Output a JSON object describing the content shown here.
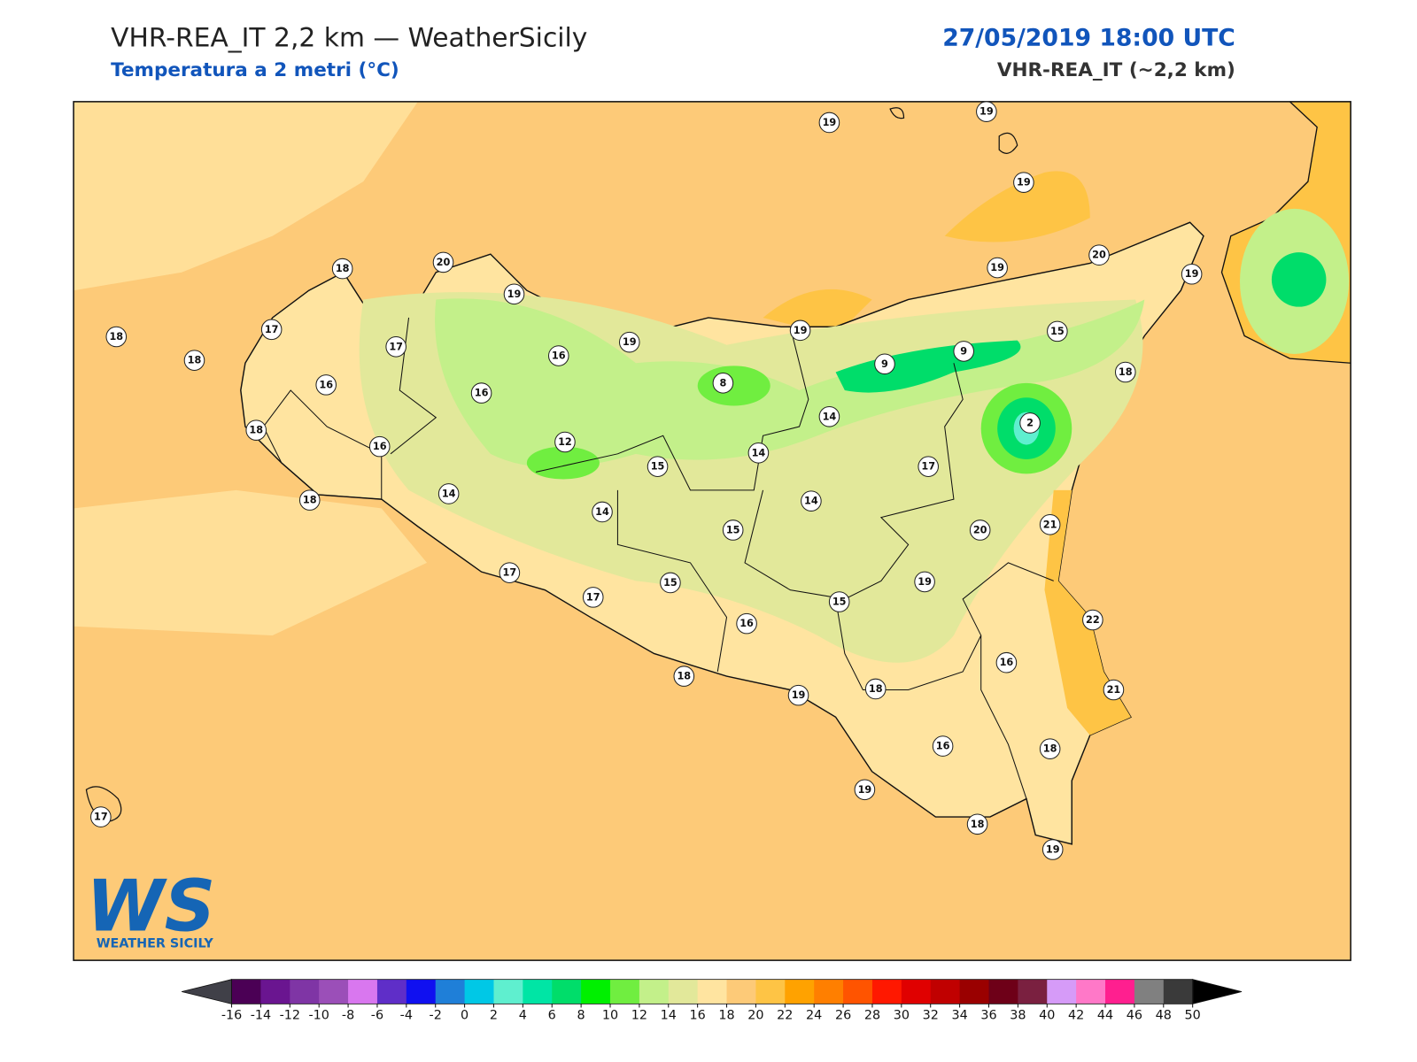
{
  "header": {
    "title": "VHR-REA_IT 2,2 km — WeatherSicily",
    "subtitle": "Temperatura a 2 metri (°C)",
    "date": "27/05/2019 18:00 UTC",
    "model": "VHR-REA_IT (~2,2 km)"
  },
  "map": {
    "stations": [
      19,
      19,
      19,
      20,
      19,
      19,
      15,
      18,
      9,
      9,
      19,
      8,
      19,
      16,
      19,
      20,
      18,
      17,
      17,
      18,
      18,
      16,
      16,
      18,
      16,
      12,
      15,
      14,
      14,
      2,
      17,
      18,
      14,
      14,
      14,
      15,
      20,
      21,
      17,
      15,
      17,
      19,
      15,
      16,
      22,
      16,
      21,
      18,
      19,
      18,
      16,
      18,
      19,
      18,
      19,
      17
    ]
  },
  "colorbar": {
    "ticks": [
      -16,
      -14,
      -12,
      -10,
      -8,
      -6,
      -4,
      -2,
      0,
      2,
      4,
      6,
      8,
      10,
      12,
      14,
      16,
      18,
      20,
      22,
      24,
      26,
      28,
      30,
      32,
      34,
      36,
      38,
      40,
      42,
      44,
      46,
      48,
      50
    ],
    "colors": [
      "#4b0055",
      "#6a1590",
      "#7f35a5",
      "#9b4fb8",
      "#d977ef",
      "#5f2ec8",
      "#1010f0",
      "#1f7fd8",
      "#00c8e6",
      "#5fefcf",
      "#00e5a5",
      "#00dd6a",
      "#00f000",
      "#70ee40",
      "#c3f08a",
      "#e2e89a",
      "#ffe4a0",
      "#fdca78",
      "#fec445",
      "#ffa200",
      "#ff7f00",
      "#ff5400",
      "#ff1800",
      "#e00000",
      "#c00000",
      "#9a0000",
      "#6e0018",
      "#7a2040",
      "#d69bf8",
      "#ff78c8",
      "#ff1f8f",
      "#808080",
      "#3a3a3a"
    ],
    "under_color": "#404048",
    "over_color": "#000000"
  },
  "logo": {
    "mark": "WS",
    "name": "WEATHER SICILY"
  }
}
